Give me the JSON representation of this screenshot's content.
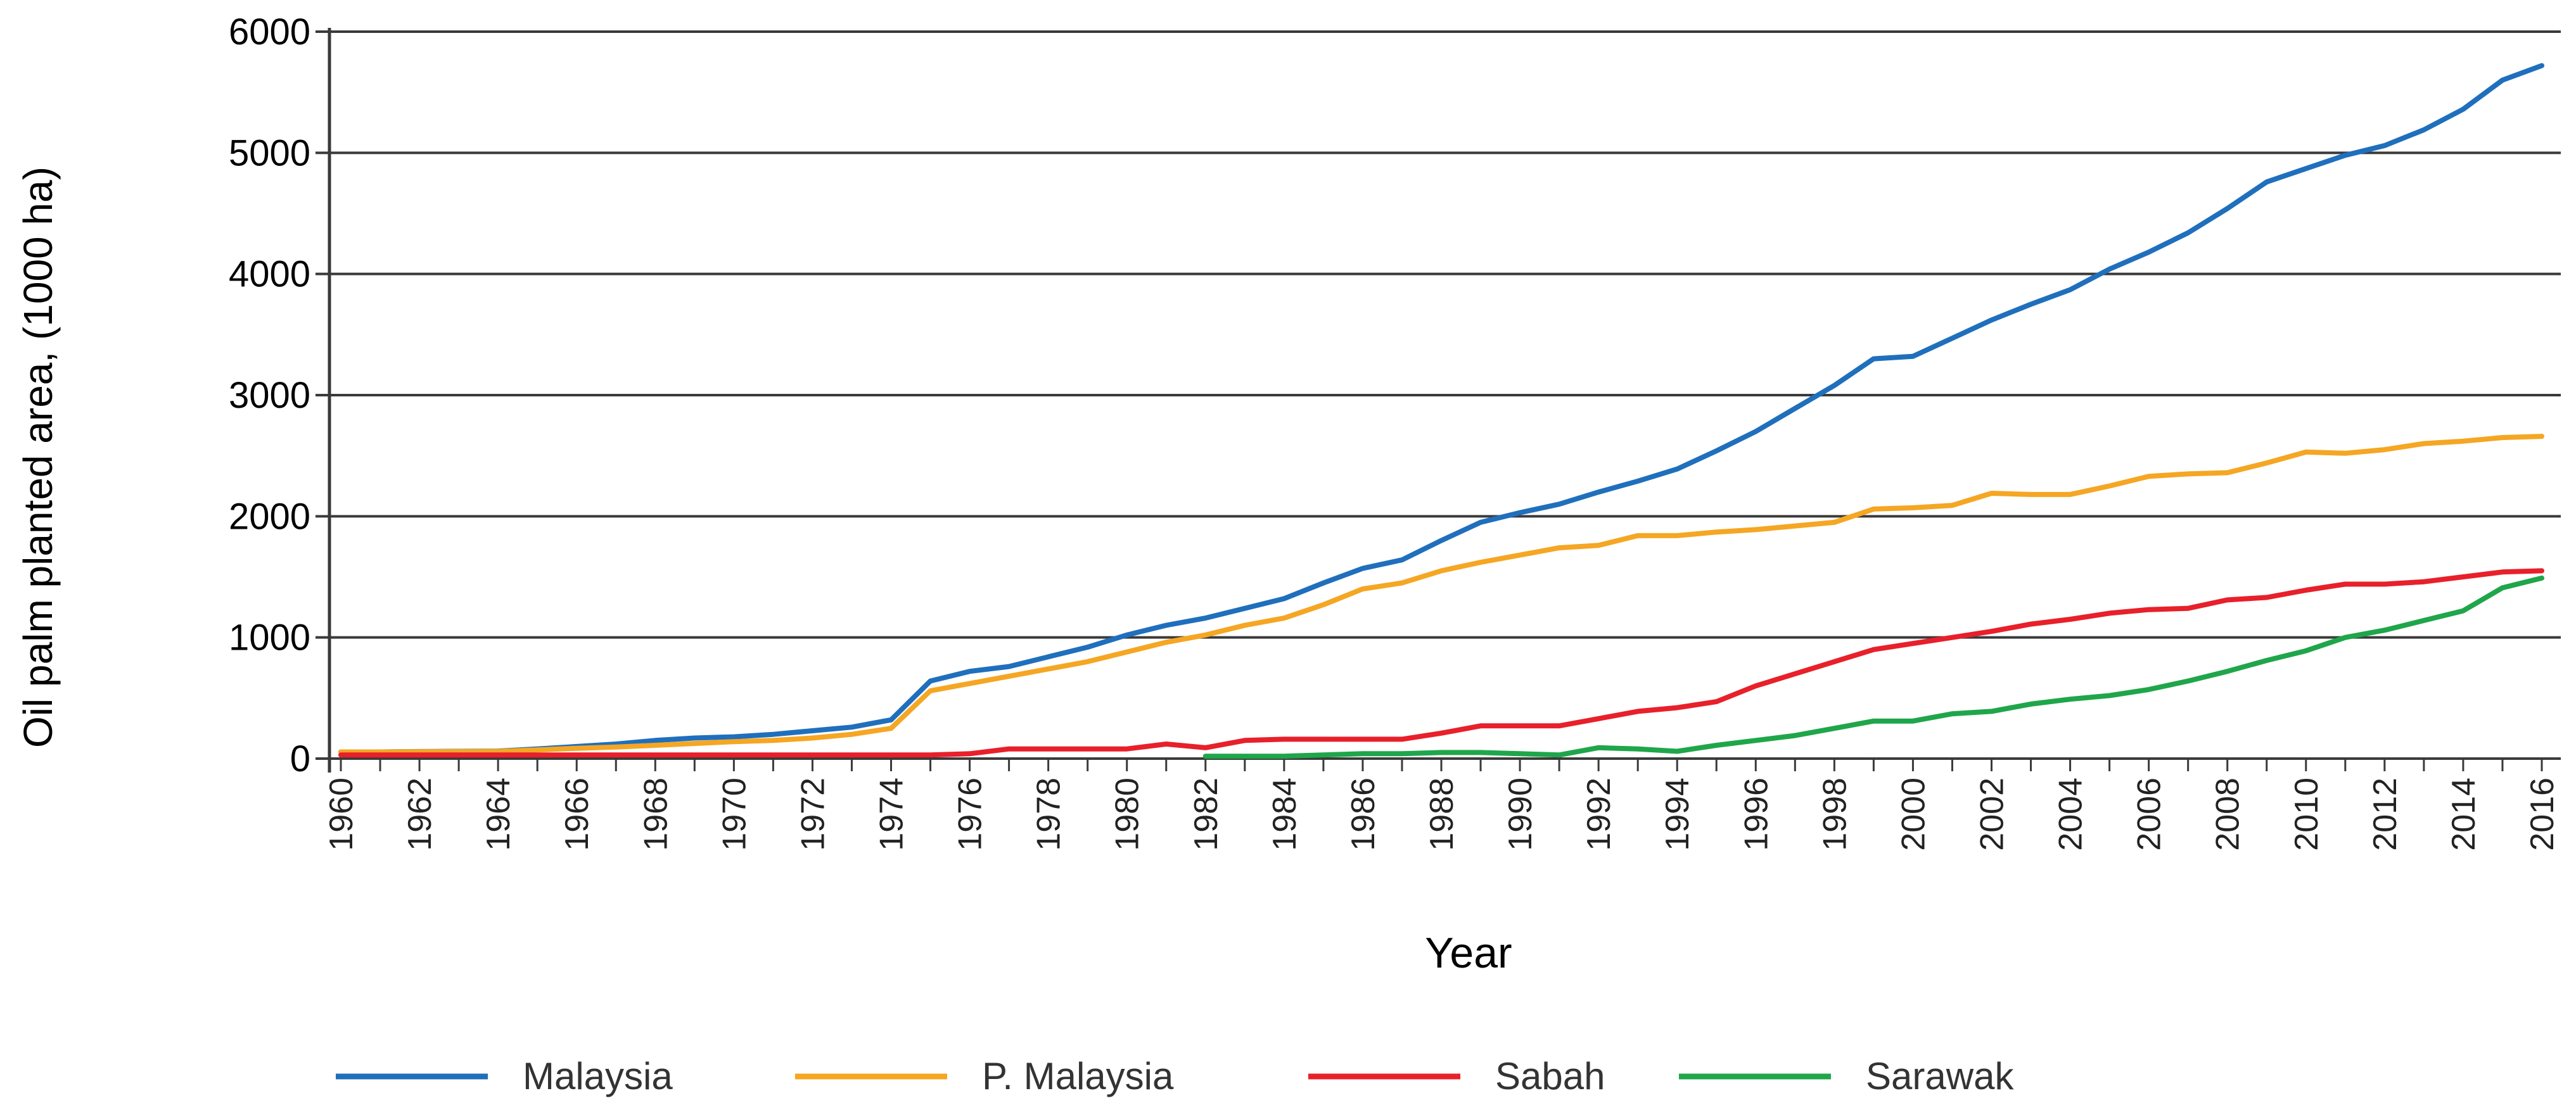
{
  "chart_data": {
    "type": "line",
    "title": "",
    "xlabel": "Year",
    "ylabel": "Oil palm planted area, (1000 ha)",
    "ylim": [
      0,
      6000
    ],
    "yticks": [
      "0",
      "1000",
      "2000",
      "3000",
      "4000",
      "5000",
      "6000"
    ],
    "xlim": [
      1960,
      2016
    ],
    "xticks": [
      "1960",
      "1962",
      "1964",
      "1966",
      "1968",
      "1970",
      "1972",
      "1974",
      "1976",
      "1978",
      "1980",
      "1982",
      "1984",
      "1986",
      "1988",
      "1990",
      "1992",
      "1994",
      "1996",
      "1998",
      "2000",
      "2002",
      "2004",
      "2006",
      "2008",
      "2010",
      "2012",
      "2014",
      "2016"
    ],
    "grid": true,
    "legend_position": "bottom",
    "series": [
      {
        "name": "Malaysia",
        "color": "#1f6fbd",
        "x": [
          1960,
          1961,
          1962,
          1963,
          1964,
          1965,
          1966,
          1967,
          1968,
          1969,
          1970,
          1971,
          1972,
          1973,
          1974,
          1975,
          1976,
          1977,
          1978,
          1979,
          1980,
          1981,
          1982,
          1983,
          1984,
          1985,
          1986,
          1987,
          1988,
          1989,
          1990,
          1991,
          1992,
          1993,
          1994,
          1995,
          1996,
          1997,
          1998,
          1999,
          2000,
          2001,
          2002,
          2003,
          2004,
          2005,
          2006,
          2007,
          2008,
          2009,
          2010,
          2011,
          2012,
          2013,
          2014,
          2015,
          2016
        ],
        "values": [
          55,
          55,
          58,
          60,
          62,
          80,
          100,
          120,
          150,
          170,
          180,
          200,
          230,
          260,
          320,
          640,
          720,
          760,
          840,
          920,
          1020,
          1100,
          1160,
          1240,
          1320,
          1450,
          1570,
          1640,
          1800,
          1950,
          2030,
          2100,
          2200,
          2290,
          2390,
          2540,
          2700,
          2890,
          3080,
          3300,
          3320,
          3470,
          3620,
          3750,
          3870,
          4040,
          4180,
          4340,
          4540,
          4760,
          4870,
          4980,
          5060,
          5190,
          5360,
          5600,
          5720
        ]
      },
      {
        "name": "P. Malaysia",
        "color": "#f5a623",
        "x": [
          1960,
          1961,
          1962,
          1963,
          1964,
          1965,
          1966,
          1967,
          1968,
          1969,
          1970,
          1971,
          1972,
          1973,
          1974,
          1975,
          1976,
          1977,
          1978,
          1979,
          1980,
          1981,
          1982,
          1983,
          1984,
          1985,
          1986,
          1987,
          1988,
          1989,
          1990,
          1991,
          1992,
          1993,
          1994,
          1995,
          1996,
          1997,
          1998,
          1999,
          2000,
          2001,
          2002,
          2003,
          2004,
          2005,
          2006,
          2007,
          2008,
          2009,
          2010,
          2011,
          2012,
          2013,
          2014,
          2015,
          2016
        ],
        "values": [
          55,
          55,
          57,
          58,
          60,
          72,
          85,
          95,
          110,
          125,
          140,
          150,
          170,
          200,
          250,
          560,
          620,
          680,
          740,
          800,
          880,
          960,
          1020,
          1100,
          1160,
          1270,
          1400,
          1450,
          1550,
          1620,
          1680,
          1740,
          1760,
          1840,
          1840,
          1870,
          1890,
          1920,
          1950,
          2060,
          2070,
          2090,
          2190,
          2180,
          2180,
          2250,
          2330,
          2350,
          2360,
          2440,
          2530,
          2520,
          2550,
          2600,
          2620,
          2650,
          2660
        ]
      },
      {
        "name": "Sabah",
        "color": "#e8202a",
        "x": [
          1960,
          1961,
          1962,
          1963,
          1964,
          1965,
          1966,
          1967,
          1968,
          1969,
          1970,
          1971,
          1972,
          1973,
          1974,
          1975,
          1976,
          1977,
          1978,
          1979,
          1980,
          1981,
          1982,
          1983,
          1984,
          1985,
          1986,
          1987,
          1988,
          1989,
          1990,
          1991,
          1992,
          1993,
          1994,
          1995,
          1996,
          1997,
          1998,
          1999,
          2000,
          2001,
          2002,
          2003,
          2004,
          2005,
          2006,
          2007,
          2008,
          2009,
          2010,
          2011,
          2012,
          2013,
          2014,
          2015,
          2016
        ],
        "values": [
          30,
          30,
          30,
          30,
          30,
          30,
          30,
          30,
          30,
          30,
          30,
          30,
          30,
          30,
          30,
          30,
          40,
          80,
          80,
          80,
          80,
          120,
          90,
          150,
          160,
          160,
          160,
          160,
          210,
          270,
          270,
          270,
          330,
          390,
          420,
          470,
          600,
          700,
          800,
          900,
          950,
          1000,
          1050,
          1110,
          1150,
          1200,
          1230,
          1240,
          1310,
          1330,
          1390,
          1440,
          1440,
          1460,
          1500,
          1540,
          1550
        ]
      },
      {
        "name": "Sarawak",
        "color": "#1fa64a",
        "x": [
          1982,
          1983,
          1984,
          1985,
          1986,
          1987,
          1988,
          1989,
          1990,
          1991,
          1992,
          1993,
          1994,
          1995,
          1996,
          1997,
          1998,
          1999,
          2000,
          2001,
          2002,
          2003,
          2004,
          2005,
          2006,
          2007,
          2008,
          2009,
          2010,
          2011,
          2012,
          2013,
          2014,
          2015,
          2016
        ],
        "values": [
          20,
          20,
          20,
          30,
          40,
          40,
          50,
          50,
          40,
          30,
          90,
          80,
          60,
          110,
          150,
          190,
          250,
          310,
          310,
          370,
          390,
          450,
          490,
          520,
          570,
          640,
          720,
          810,
          890,
          1000,
          1060,
          1140,
          1220,
          1410,
          1490
        ]
      }
    ]
  }
}
